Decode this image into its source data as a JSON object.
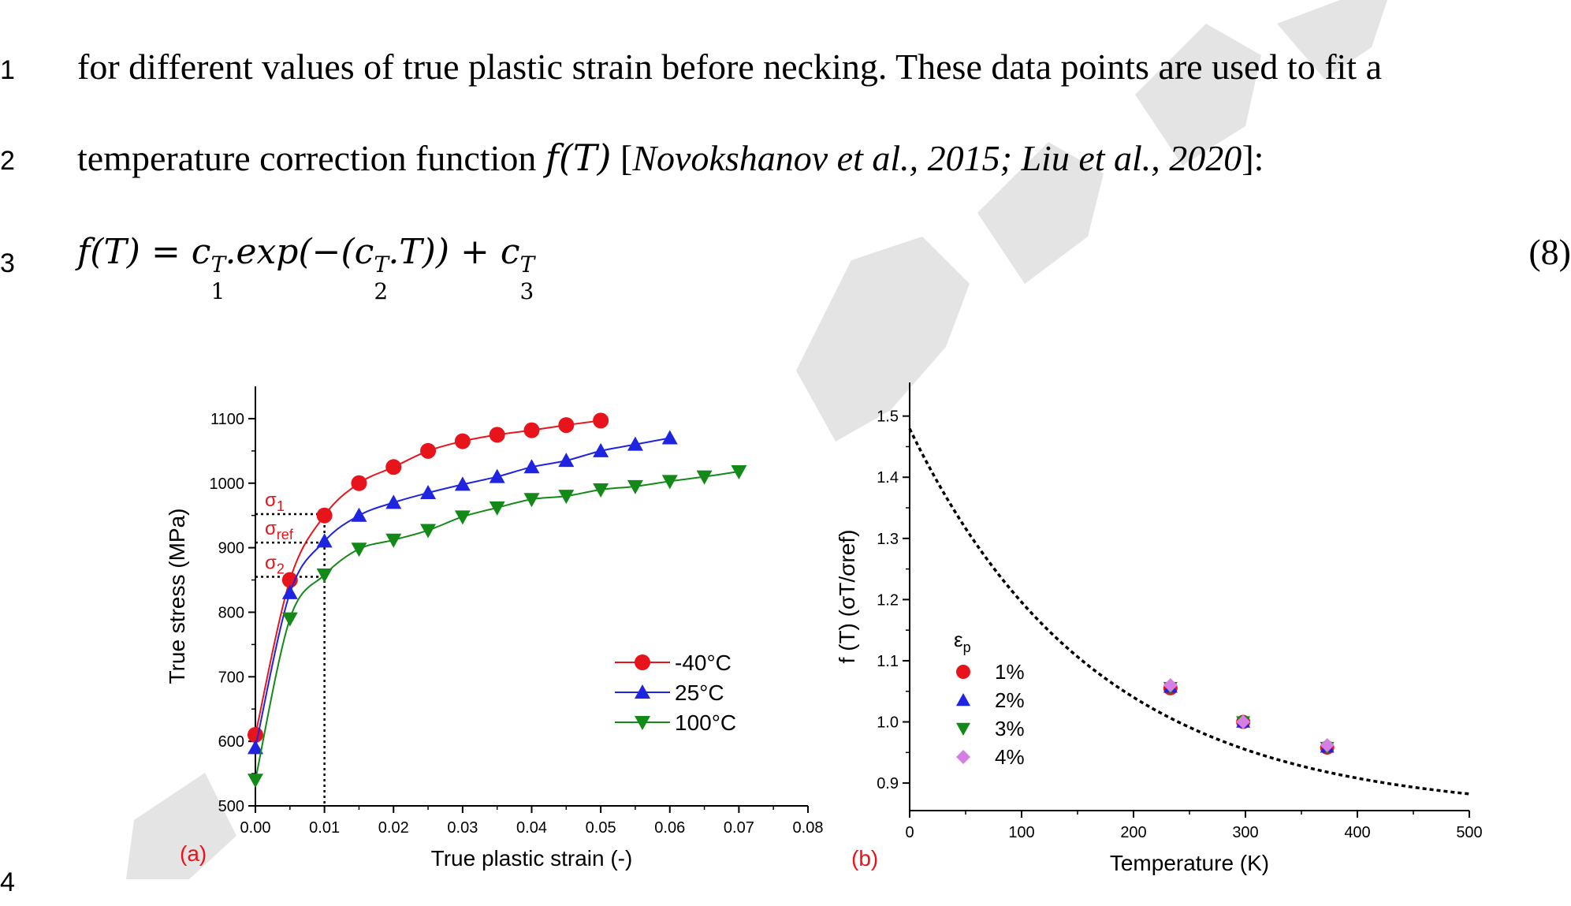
{
  "text": {
    "line1": {
      "num": "1",
      "text": "for different values of true plastic strain before necking. These data points are used to fit a"
    },
    "line2": {
      "num": "2",
      "pre": "temperature correction function ",
      "func": "f(T)",
      "bracket_open": " [",
      "cite": "Novokshanov et al., 2015; Liu et al., 2020",
      "bracket_close": "]:"
    },
    "line3": {
      "num": "3",
      "eq_lhs": "f(T) = c",
      "eq_sup1": "T",
      "eq_sub1": "1",
      "eq_mid": ".exp(−(c",
      "eq_sup2": "T",
      "eq_sub2": "2",
      "eq_mid2": ".T)) + c",
      "eq_sup3": "T",
      "eq_sub3": "3",
      "eq_number": "(8)"
    },
    "line4": {
      "num": "4"
    }
  },
  "chart_data": [
    {
      "type": "line",
      "panel_label": "(a)",
      "xlabel": "True plastic strain (-)",
      "ylabel": "True stress (MPa)",
      "xlim": [
        0,
        0.08
      ],
      "ylim": [
        500,
        1150
      ],
      "xticks": [
        "0.00",
        "0.01",
        "0.02",
        "0.03",
        "0.04",
        "0.05",
        "0.06",
        "0.07",
        "0.08"
      ],
      "yticks": [
        "500",
        "600",
        "700",
        "800",
        "900",
        "1000",
        "1100"
      ],
      "annotations": [
        {
          "text": "σ",
          "sub": "1",
          "y": 952
        },
        {
          "text": "σ",
          "sub": "ref",
          "y": 908
        },
        {
          "text": "σ",
          "sub": "2",
          "y": 855
        }
      ],
      "legend_position": "lower-right",
      "series": [
        {
          "name": "-40°C",
          "color": "#e8141c",
          "marker": "circle",
          "x": [
            0,
            0.005,
            0.01,
            0.015,
            0.02,
            0.025,
            0.03,
            0.035,
            0.04,
            0.045,
            0.05
          ],
          "y": [
            610,
            850,
            950,
            1000,
            1025,
            1050,
            1065,
            1075,
            1082,
            1090,
            1097
          ]
        },
        {
          "name": "25°C",
          "color": "#1f24e0",
          "marker": "triangle-up",
          "x": [
            0,
            0.005,
            0.01,
            0.015,
            0.02,
            0.025,
            0.03,
            0.035,
            0.04,
            0.045,
            0.05,
            0.055,
            0.06
          ],
          "y": [
            590,
            830,
            910,
            950,
            970,
            985,
            998,
            1010,
            1025,
            1035,
            1050,
            1060,
            1070
          ]
        },
        {
          "name": "100°C",
          "color": "#138a17",
          "marker": "triangle-down",
          "x": [
            0,
            0.005,
            0.01,
            0.015,
            0.02,
            0.025,
            0.03,
            0.035,
            0.04,
            0.045,
            0.05,
            0.055,
            0.06,
            0.065,
            0.07
          ],
          "y": [
            540,
            790,
            858,
            898,
            912,
            927,
            948,
            962,
            975,
            980,
            990,
            995,
            1003,
            1010,
            1018
          ]
        }
      ]
    },
    {
      "type": "scatter",
      "panel_label": "(b)",
      "xlabel": "Temperature (K)",
      "ylabel": "f (T) (σT/σref)",
      "xlim": [
        0,
        500
      ],
      "ylim": [
        0.855,
        1.555
      ],
      "xticks": [
        "0",
        "100",
        "200",
        "300",
        "400",
        "500"
      ],
      "yticks": [
        "0.9",
        "1.0",
        "1.1",
        "1.2",
        "1.3",
        "1.4",
        "1.5"
      ],
      "legend_title": "ε",
      "legend_title_sub": "p",
      "legend_position": "lower-left",
      "fit_curve": {
        "c1": 0.6283,
        "c2": 0.006,
        "c3": 0.851,
        "x_range": [
          0,
          500
        ]
      },
      "series": [
        {
          "name": "1%",
          "color": "#e8141c",
          "marker": "circle",
          "x": [
            233,
            298,
            373
          ],
          "y": [
            1.055,
            1.0,
            0.958
          ]
        },
        {
          "name": "2%",
          "color": "#1f24e0",
          "marker": "triangle-up",
          "x": [
            233,
            298,
            373
          ],
          "y": [
            1.057,
            1.0,
            0.959
          ]
        },
        {
          "name": "3%",
          "color": "#138a17",
          "marker": "triangle-down",
          "x": [
            233,
            298,
            373
          ],
          "y": [
            1.056,
            1.0,
            0.958
          ]
        },
        {
          "name": "4%",
          "color": "#d57fe6",
          "marker": "diamond",
          "x": [
            233,
            298,
            373
          ],
          "y": [
            1.06,
            1.0,
            0.962
          ]
        }
      ]
    }
  ]
}
